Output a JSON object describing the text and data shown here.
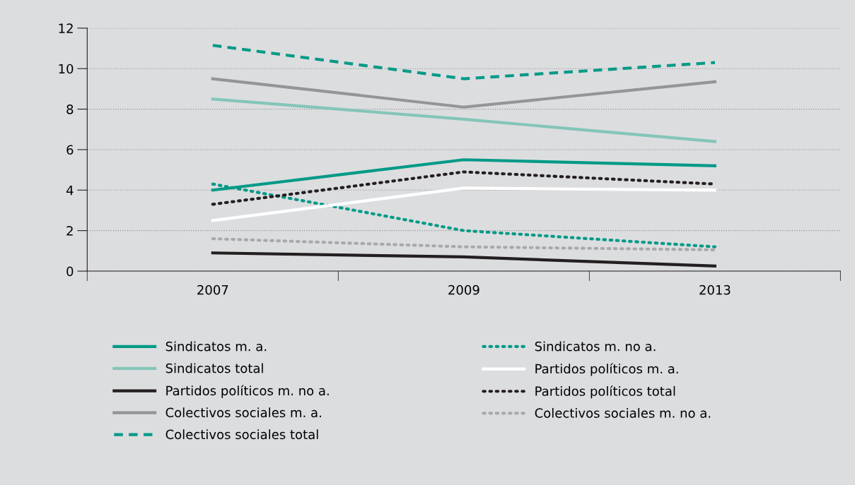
{
  "chart_data": {
    "type": "line",
    "categories": [
      "2007",
      "2009",
      "2013"
    ],
    "ylim": [
      0,
      12
    ],
    "yticks": [
      0,
      2,
      4,
      6,
      8,
      10,
      12
    ],
    "grid": "y",
    "legend": "bottom",
    "series": [
      {
        "name": "Sindicatos m. a.",
        "color": "#009a87",
        "line_style": "solid",
        "values": [
          4.0,
          5.5,
          5.2
        ]
      },
      {
        "name": "Sindicatos m. no a.",
        "color": "#009a87",
        "line_style": "dotted",
        "values": [
          4.3,
          2.0,
          1.2
        ]
      },
      {
        "name": "Sindicatos total",
        "color": "#84c5b9",
        "line_style": "solid",
        "values": [
          8.5,
          7.5,
          6.4
        ]
      },
      {
        "name": "Partidos políticos m. a.",
        "color": "#ffffff",
        "line_style": "solid",
        "values": [
          2.5,
          4.1,
          4.0
        ]
      },
      {
        "name": "Partidos políticos m. no a.",
        "color": "#231f20",
        "line_style": "solid",
        "values": [
          0.9,
          0.7,
          0.25
        ]
      },
      {
        "name": "Partidos políticos total",
        "color": "#231f20",
        "line_style": "dotted",
        "values": [
          3.3,
          4.9,
          4.3
        ]
      },
      {
        "name": "Colectivos sociales m. a.",
        "color": "#939598",
        "line_style": "solid",
        "values": [
          9.5,
          8.1,
          9.35
        ]
      },
      {
        "name": "Colectivos sociales m. no a.",
        "color": "#a7a9ac",
        "line_style": "dotted",
        "values": [
          1.6,
          1.2,
          1.05
        ]
      },
      {
        "name": "Colectivos sociales total",
        "color": "#009a87",
        "line_style": "dashed",
        "values": [
          11.15,
          9.5,
          10.3
        ]
      }
    ]
  }
}
